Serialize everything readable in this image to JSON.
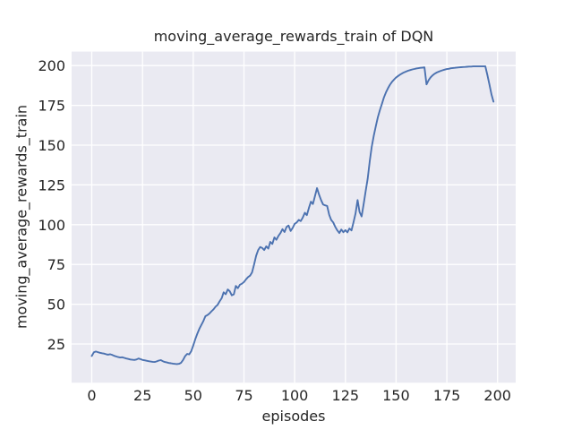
{
  "style": {
    "figure_bg": "#ffffff",
    "axes_bg": "#eaeaf2",
    "grid_color": "#ffffff",
    "text_color": "#262626",
    "line_color": "#4c72b0"
  },
  "chart_data": {
    "type": "line",
    "title": "moving_average_rewards_train of DQN",
    "xlabel": "episodes",
    "ylabel": "moving_average_rewards_train",
    "legend": "none",
    "grid": true,
    "xlim": [
      -9.95,
      208.95
    ],
    "ylim": [
      0.7,
      208.8
    ],
    "xticks": [
      0,
      25,
      50,
      75,
      100,
      125,
      150,
      175,
      200
    ],
    "yticks": [
      25,
      50,
      75,
      100,
      125,
      150,
      175,
      200
    ],
    "x_start": 0,
    "x_step": 1,
    "series": [
      {
        "name": "moving_average_rewards_train",
        "color": "#4c72b0",
        "values": [
          17.5,
          19.8,
          20.3,
          19.9,
          19.5,
          19.2,
          19.0,
          18.6,
          18.3,
          18.6,
          18.2,
          17.6,
          17.2,
          16.8,
          16.5,
          16.7,
          16.3,
          15.9,
          15.6,
          15.3,
          15.1,
          15.0,
          15.3,
          15.9,
          15.5,
          15.0,
          14.8,
          14.5,
          14.2,
          14.0,
          13.8,
          13.7,
          14.1,
          14.6,
          14.9,
          14.2,
          13.7,
          13.4,
          13.1,
          12.9,
          12.7,
          12.5,
          12.4,
          12.6,
          13.2,
          15.0,
          17.4,
          18.8,
          18.5,
          20.5,
          24.0,
          28.0,
          31.5,
          34.5,
          37.0,
          39.5,
          42.5,
          43.2,
          44.2,
          45.6,
          46.8,
          48.5,
          49.6,
          51.8,
          53.8,
          57.5,
          56.3,
          59.3,
          58.2,
          55.6,
          56.3,
          61.5,
          60.1,
          62.3,
          62.9,
          64.0,
          65.7,
          67.0,
          68.0,
          70.0,
          75.0,
          80.5,
          84.0,
          86.0,
          85.4,
          84.1,
          86.4,
          85.0,
          89.2,
          87.9,
          92.0,
          90.5,
          93.0,
          94.8,
          97.2,
          95.4,
          98.6,
          99.5,
          96.1,
          98.0,
          100.5,
          101.4,
          103.0,
          102.3,
          104.5,
          107.5,
          106.0,
          110.5,
          114.5,
          113.0,
          118.0,
          123.0,
          119.0,
          115.5,
          112.7,
          112.2,
          111.8,
          106.2,
          103.0,
          101.4,
          98.6,
          96.5,
          94.8,
          97.0,
          95.3,
          96.6,
          95.2,
          97.6,
          96.4,
          101.4,
          107.0,
          115.5,
          108.0,
          105.2,
          113.0,
          121.0,
          129.0,
          140.0,
          149.0,
          156.0,
          162.0,
          167.5,
          172.0,
          176.0,
          180.0,
          183.2,
          185.8,
          188.0,
          189.8,
          191.3,
          192.5,
          193.5,
          194.4,
          195.1,
          195.8,
          196.3,
          196.8,
          197.2,
          197.6,
          197.9,
          198.2,
          198.4,
          198.6,
          198.7,
          198.9,
          188.2,
          190.8,
          192.6,
          193.9,
          194.9,
          195.6,
          196.2,
          196.7,
          197.1,
          197.5,
          197.8,
          198.0,
          198.3,
          198.5,
          198.6,
          198.8,
          198.9,
          199.0,
          199.1,
          199.2,
          199.3,
          199.4,
          199.4,
          199.5,
          199.5,
          199.5,
          199.5,
          199.5,
          199.5,
          199.5,
          194.0,
          188.0,
          182.0,
          177.3
        ]
      }
    ]
  }
}
